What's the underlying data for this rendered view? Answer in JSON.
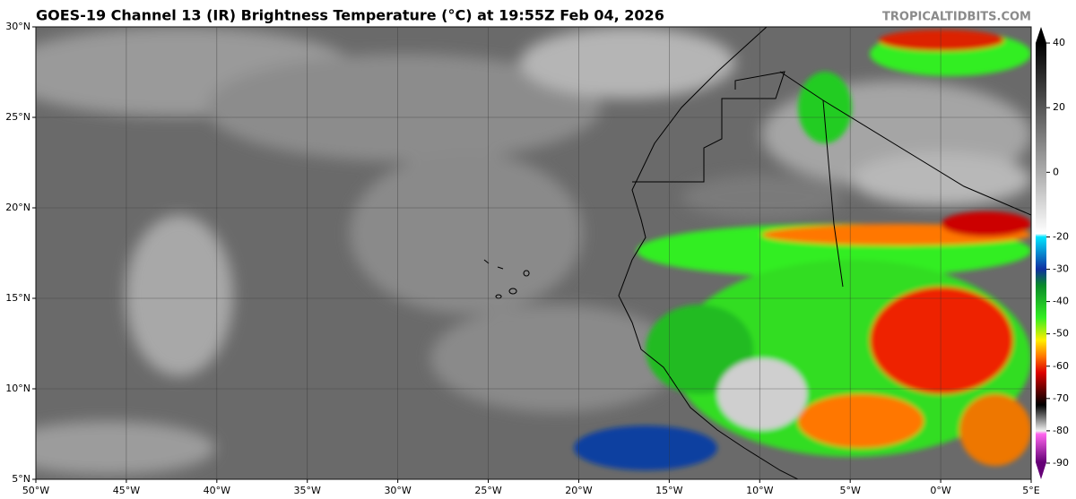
{
  "header": {
    "title": "GOES-19 Channel 13 (IR) Brightness Temperature (°C) at 19:55Z Feb 04, 2026",
    "source": "TROPICALTIDBITS.COM"
  },
  "map": {
    "xlim": [
      -50,
      5
    ],
    "ylim": [
      5,
      30
    ],
    "xticks": [
      {
        "value": -50,
        "label": "50°W"
      },
      {
        "value": -45,
        "label": "45°W"
      },
      {
        "value": -40,
        "label": "40°W"
      },
      {
        "value": -35,
        "label": "35°W"
      },
      {
        "value": -30,
        "label": "30°W"
      },
      {
        "value": -25,
        "label": "25°W"
      },
      {
        "value": -20,
        "label": "20°W"
      },
      {
        "value": -15,
        "label": "15°W"
      },
      {
        "value": -10,
        "label": "10°W"
      },
      {
        "value": -5,
        "label": "5°W"
      },
      {
        "value": 0,
        "label": "0°W"
      },
      {
        "value": 5,
        "label": "5°E"
      }
    ],
    "yticks": [
      {
        "value": 5,
        "label": "5°N"
      },
      {
        "value": 10,
        "label": "10°N"
      },
      {
        "value": 15,
        "label": "15°N"
      },
      {
        "value": 20,
        "label": "20°N"
      },
      {
        "value": 25,
        "label": "25°N"
      },
      {
        "value": 30,
        "label": "30°N"
      }
    ],
    "grid": true
  },
  "colorbar": {
    "lim": [
      -95,
      45
    ],
    "ticks": [
      40,
      20,
      0,
      -20,
      -30,
      -40,
      -50,
      -60,
      -70,
      -80,
      -90
    ],
    "stops": [
      {
        "value": 45,
        "color": "#000000"
      },
      {
        "value": -19,
        "color": "#ffffff"
      },
      {
        "value": -20,
        "color": "#00e5ff"
      },
      {
        "value": -30,
        "color": "#1030a0"
      },
      {
        "value": -35,
        "color": "#0a8a2a"
      },
      {
        "value": -45,
        "color": "#33ee22"
      },
      {
        "value": -52,
        "color": "#ffee00"
      },
      {
        "value": -57,
        "color": "#ff7700"
      },
      {
        "value": -62,
        "color": "#dd0000"
      },
      {
        "value": -68,
        "color": "#550000"
      },
      {
        "value": -72,
        "color": "#000000"
      },
      {
        "value": -80,
        "color": "#f0f0f0"
      },
      {
        "value": -81,
        "color": "#ff66ee"
      },
      {
        "value": -95,
        "color": "#660077"
      }
    ]
  }
}
